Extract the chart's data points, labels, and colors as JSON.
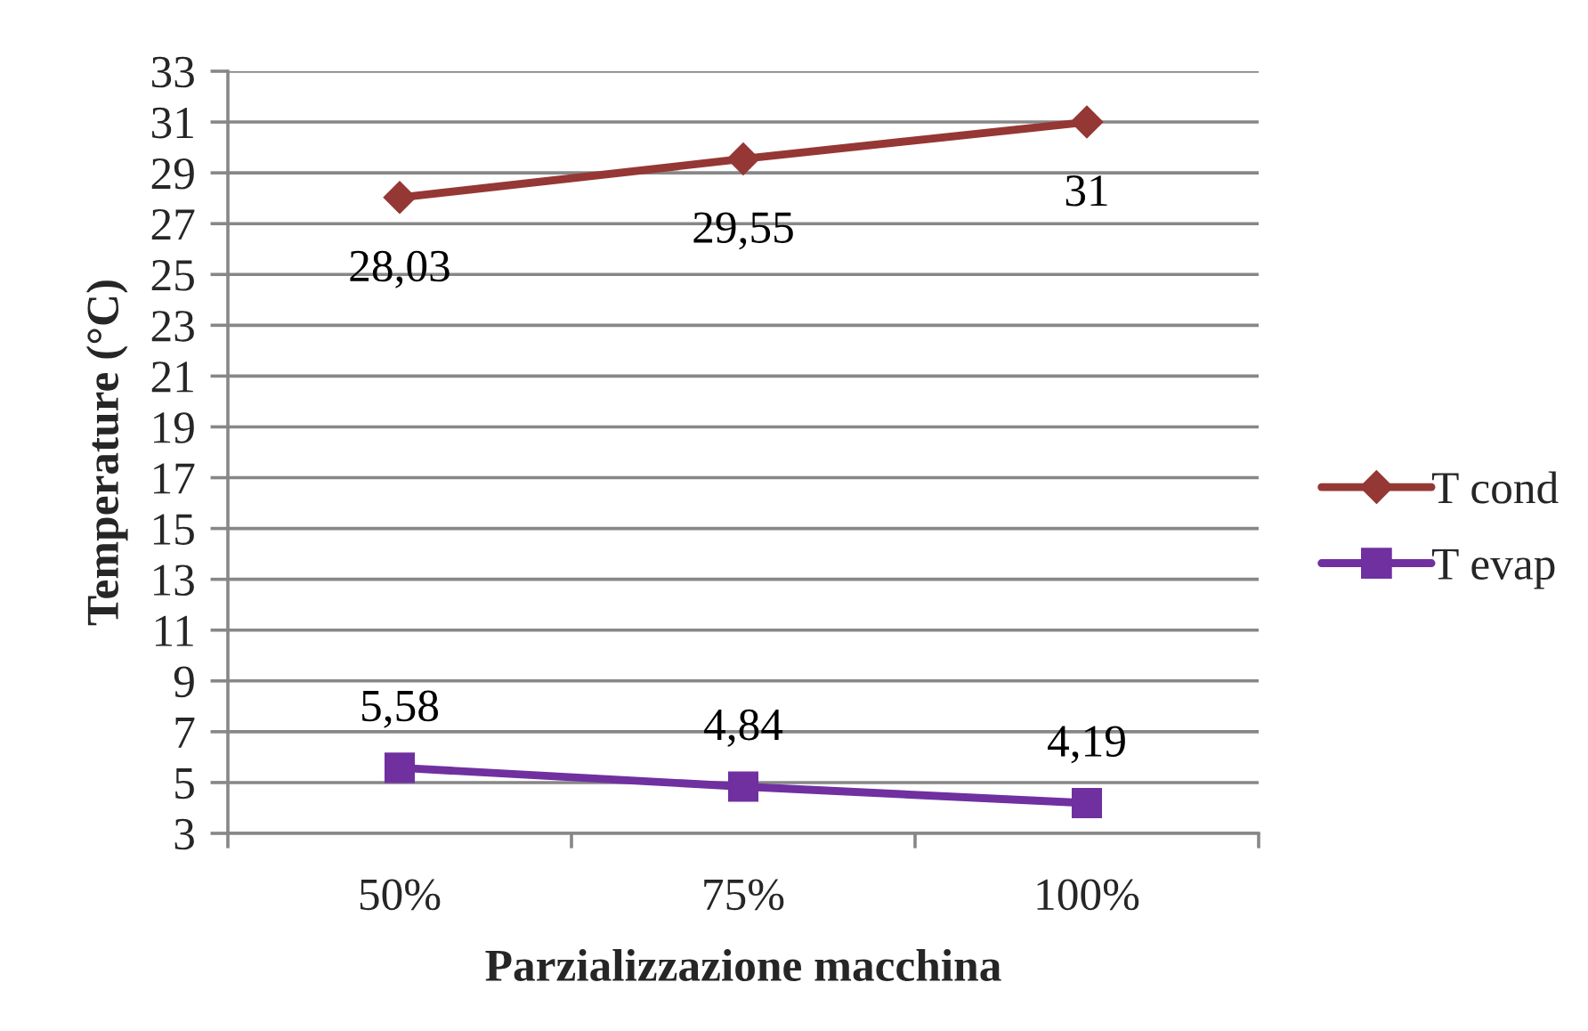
{
  "chart_data": {
    "type": "line",
    "xlabel": "Parzializzazione macchina",
    "ylabel": "Temperature (°C)",
    "categories": [
      "50%",
      "75%",
      "100%"
    ],
    "series": [
      {
        "name": "T cond",
        "color": "#953735",
        "marker": "diamond",
        "values": [
          28.03,
          29.55,
          31
        ],
        "value_labels": [
          "28,03",
          "29,55",
          "31"
        ]
      },
      {
        "name": "T evap",
        "color": "#7030a0",
        "marker": "square",
        "values": [
          5.58,
          4.84,
          4.19
        ],
        "value_labels": [
          "5,58",
          "4,84",
          "4,19"
        ]
      }
    ],
    "ylim": [
      3,
      33
    ],
    "yticks": [
      3,
      5,
      7,
      9,
      11,
      13,
      15,
      17,
      19,
      21,
      23,
      25,
      27,
      29,
      31,
      33
    ],
    "grid": "y",
    "legend": "right"
  }
}
